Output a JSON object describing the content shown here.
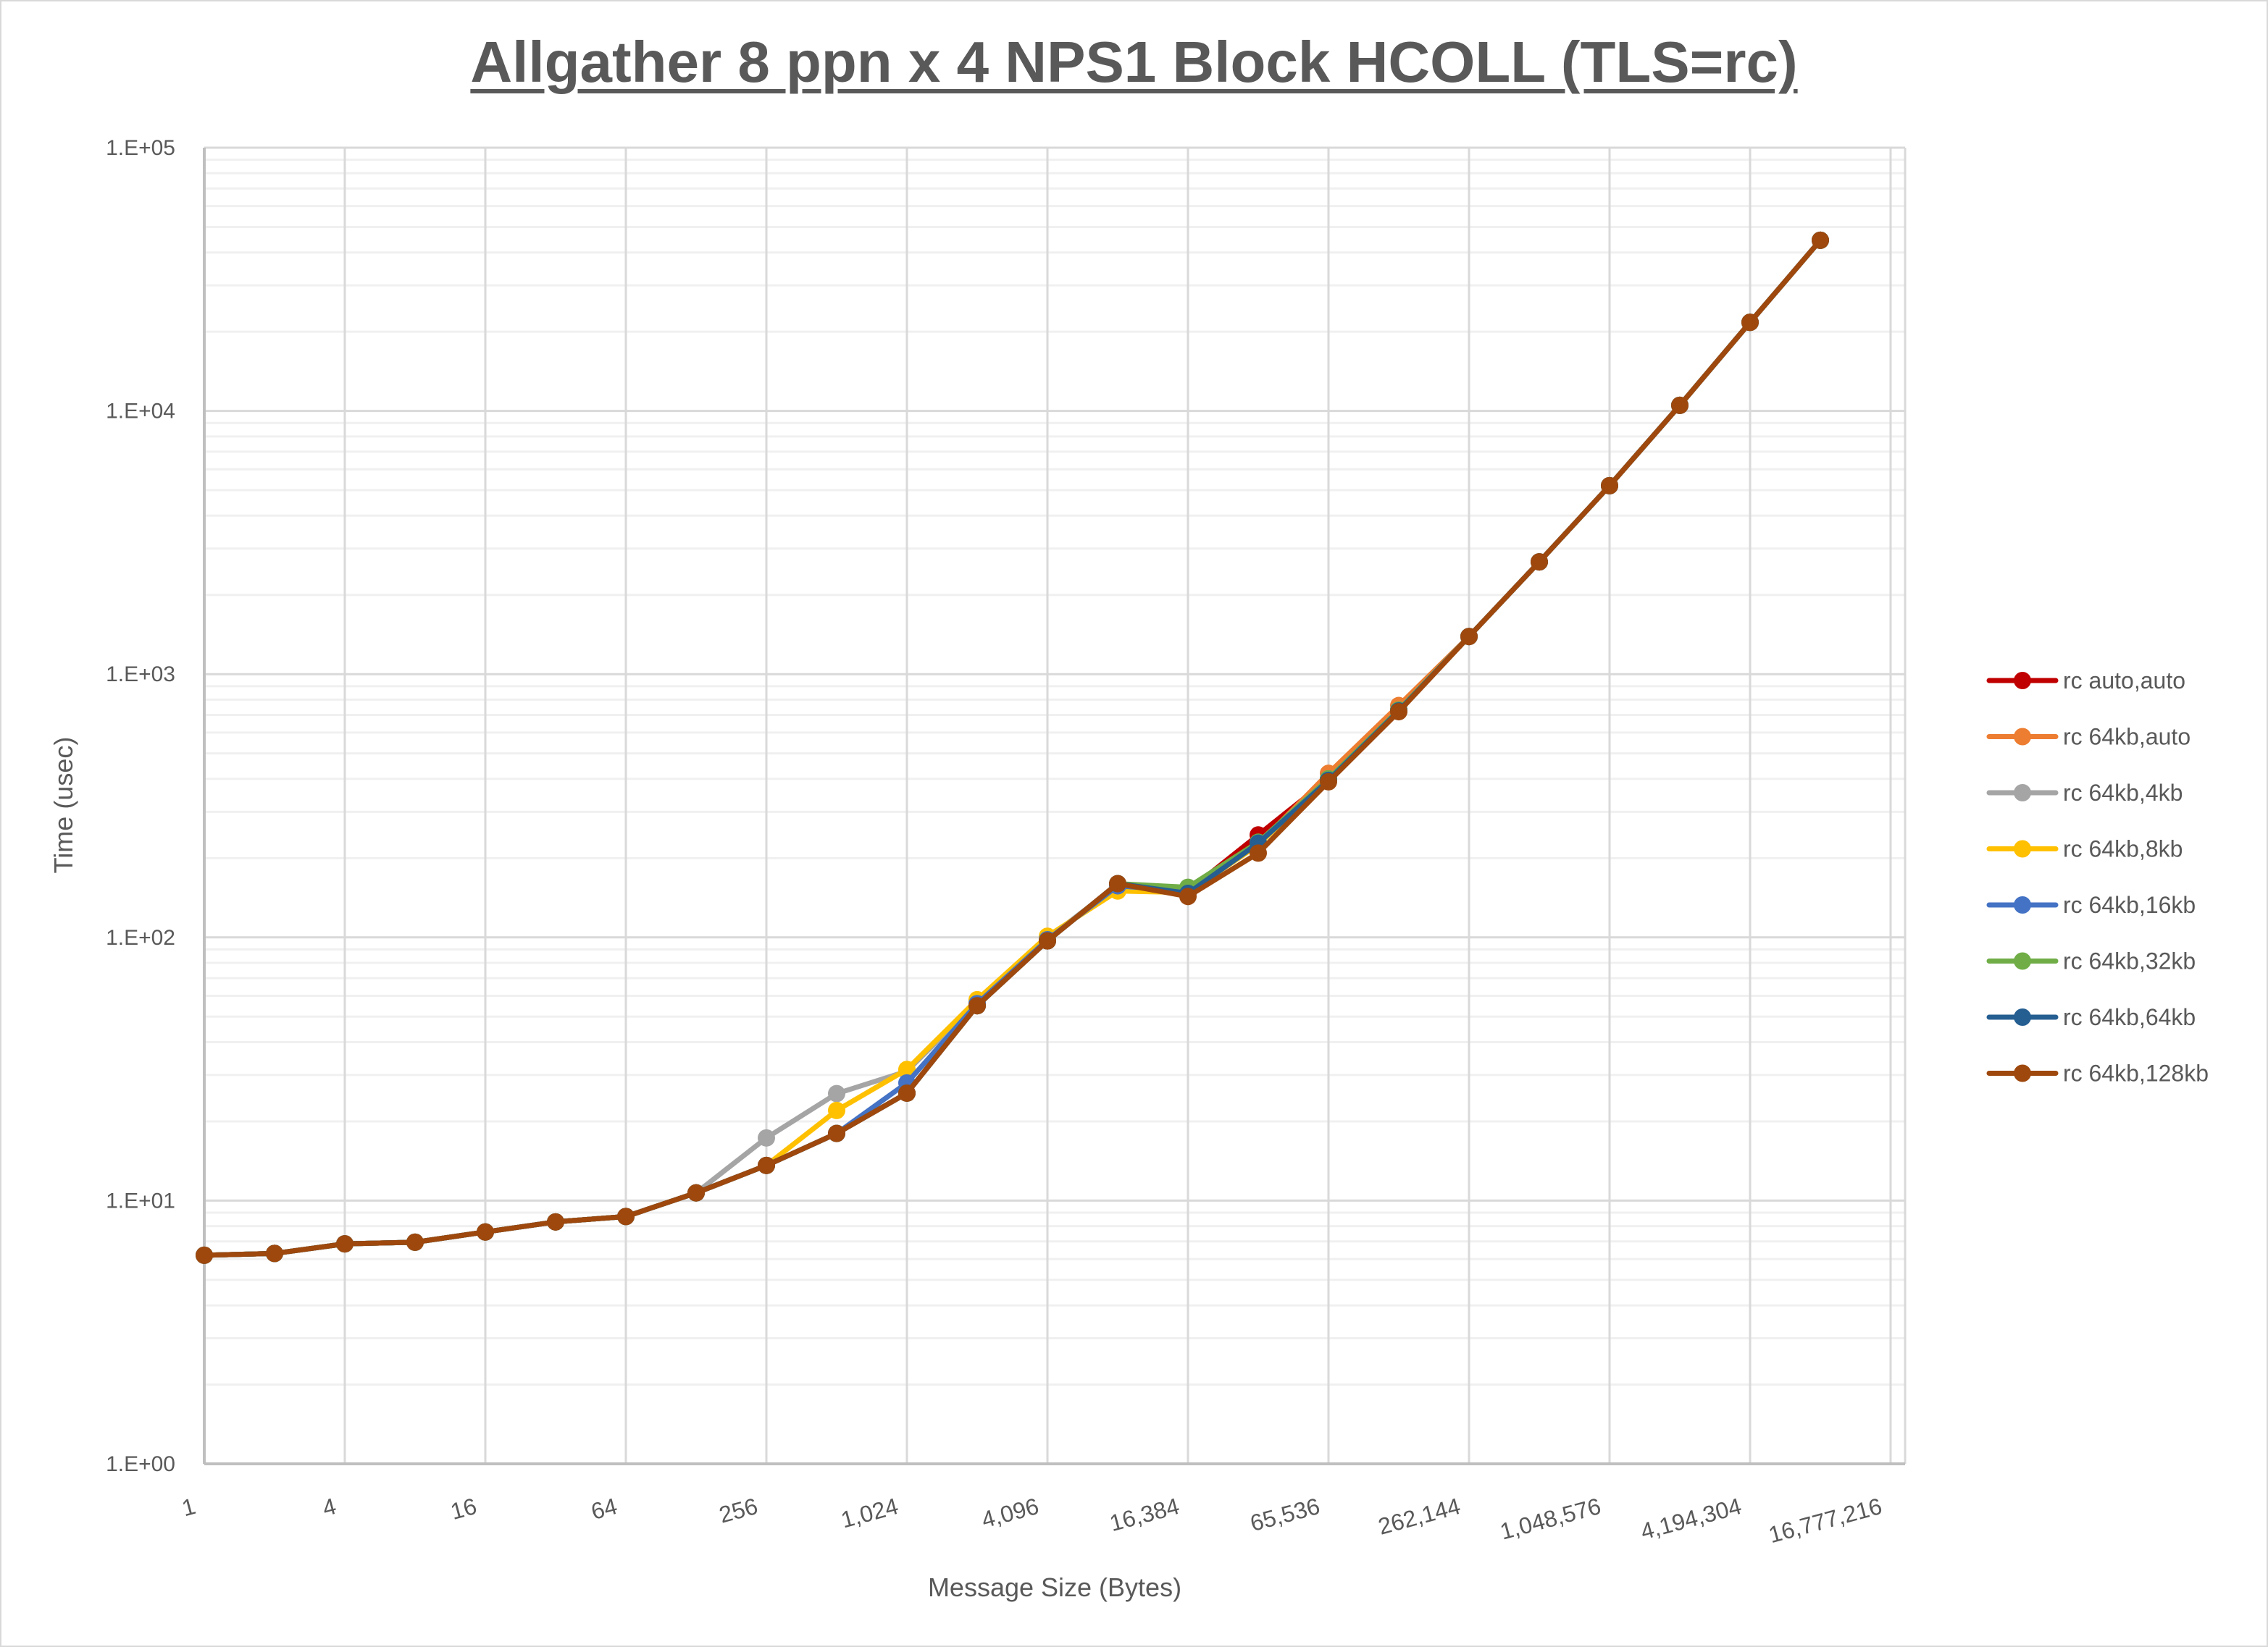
{
  "chart_data": {
    "type": "line",
    "title": "Allgather 8 ppn x 4 NPS1 Block HCOLL (TLS=rc)",
    "xlabel": "Message Size (Bytes)",
    "ylabel": "Time (usec)",
    "yscale": "log",
    "ylim": [
      1,
      100000
    ],
    "y_tick_labels": [
      "1.E+00",
      "1.E+01",
      "1.E+02",
      "1.E+03",
      "1.E+04",
      "1.E+05"
    ],
    "x_tick_labels": [
      "1",
      "4",
      "16",
      "64",
      "256",
      "1,024",
      "4,096",
      "16,384",
      "65,536",
      "262,144",
      "1,048,576",
      "4,194,304",
      "16,777,216"
    ],
    "grid": true,
    "legend_position": "right",
    "x": [
      1,
      2,
      4,
      8,
      16,
      32,
      64,
      128,
      256,
      512,
      1024,
      2048,
      4096,
      8192,
      16384,
      32768,
      65536,
      131072,
      262144,
      524288,
      1048576,
      2097152,
      4194304,
      8388608
    ],
    "series": [
      {
        "name": "rc auto,auto",
        "color": "#C00000",
        "values": [
          6.2,
          6.3,
          6.85,
          6.95,
          7.6,
          8.3,
          8.7,
          10.7,
          13.6,
          18,
          25.6,
          55,
          97,
          160,
          150,
          245,
          400,
          730,
          1390,
          2670,
          5200,
          10500,
          21700,
          44500
        ]
      },
      {
        "name": "rc 64kb,auto",
        "color": "#ED7D31",
        "values": [
          6.2,
          6.3,
          6.85,
          6.95,
          7.6,
          8.3,
          8.7,
          10.7,
          13.6,
          18,
          25.6,
          55,
          97,
          160,
          148,
          225,
          420,
          760,
          1390,
          2670,
          5200,
          10500,
          21700,
          44500
        ]
      },
      {
        "name": "rc 64kb,4kb",
        "color": "#A5A5A5",
        "values": [
          6.2,
          6.3,
          6.85,
          6.95,
          7.6,
          8.3,
          8.7,
          10.7,
          17.3,
          25.5,
          31,
          57,
          99,
          158,
          150,
          225,
          400,
          730,
          1390,
          2670,
          5200,
          10500,
          21700,
          44500
        ]
      },
      {
        "name": "rc 64kb,8kb",
        "color": "#FFC000",
        "values": [
          6.2,
          6.3,
          6.85,
          6.95,
          7.6,
          8.3,
          8.7,
          10.7,
          13.6,
          22,
          31.5,
          58,
          101,
          150,
          148,
          225,
          400,
          730,
          1390,
          2670,
          5200,
          10500,
          21700,
          44500
        ]
      },
      {
        "name": "rc 64kb,16kb",
        "color": "#4472C4",
        "values": [
          6.2,
          6.3,
          6.85,
          6.95,
          7.6,
          8.3,
          8.7,
          10.7,
          13.6,
          18,
          28,
          56,
          98,
          157,
          150,
          228,
          400,
          730,
          1390,
          2670,
          5200,
          10500,
          21700,
          44500
        ]
      },
      {
        "name": "rc 64kb,32kb",
        "color": "#70AD47",
        "values": [
          6.2,
          6.3,
          6.85,
          6.95,
          7.6,
          8.3,
          8.7,
          10.7,
          13.6,
          18,
          25.6,
          55,
          97,
          160,
          155,
          230,
          400,
          730,
          1390,
          2670,
          5200,
          10500,
          21700,
          44500
        ]
      },
      {
        "name": "rc 64kb,64kb",
        "color": "#255E91",
        "values": [
          6.2,
          6.3,
          6.85,
          6.95,
          7.6,
          8.3,
          8.7,
          10.7,
          13.6,
          18,
          25.6,
          55,
          97,
          160,
          147,
          228,
          395,
          725,
          1390,
          2670,
          5200,
          10500,
          21700,
          44500
        ]
      },
      {
        "name": "rc 64kb,128kb",
        "color": "#9E480E",
        "values": [
          6.2,
          6.3,
          6.85,
          6.95,
          7.6,
          8.3,
          8.7,
          10.7,
          13.6,
          18,
          25.6,
          55,
          97,
          160,
          143,
          209,
          390,
          720,
          1390,
          2670,
          5200,
          10500,
          21700,
          44500
        ]
      }
    ]
  }
}
